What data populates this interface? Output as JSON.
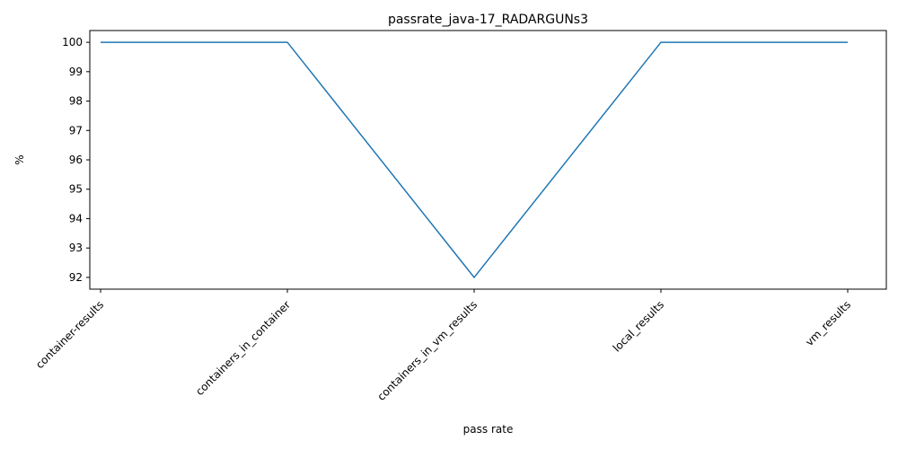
{
  "chart_data": {
    "type": "line",
    "title": "passrate_java-17_RADARGUNs3",
    "xlabel": "pass rate",
    "ylabel": "%",
    "categories": [
      "container-results",
      "containers_in_container",
      "containers_in_vm_results",
      "local_results",
      "vm_results"
    ],
    "series": [
      {
        "values": [
          100,
          100,
          92,
          100,
          100
        ],
        "color": "#1f77b4"
      }
    ],
    "ylim": [
      91.6,
      100.4
    ],
    "yticks": [
      92,
      93,
      94,
      95,
      96,
      97,
      98,
      99,
      100
    ],
    "grid": false,
    "legend": "none"
  }
}
